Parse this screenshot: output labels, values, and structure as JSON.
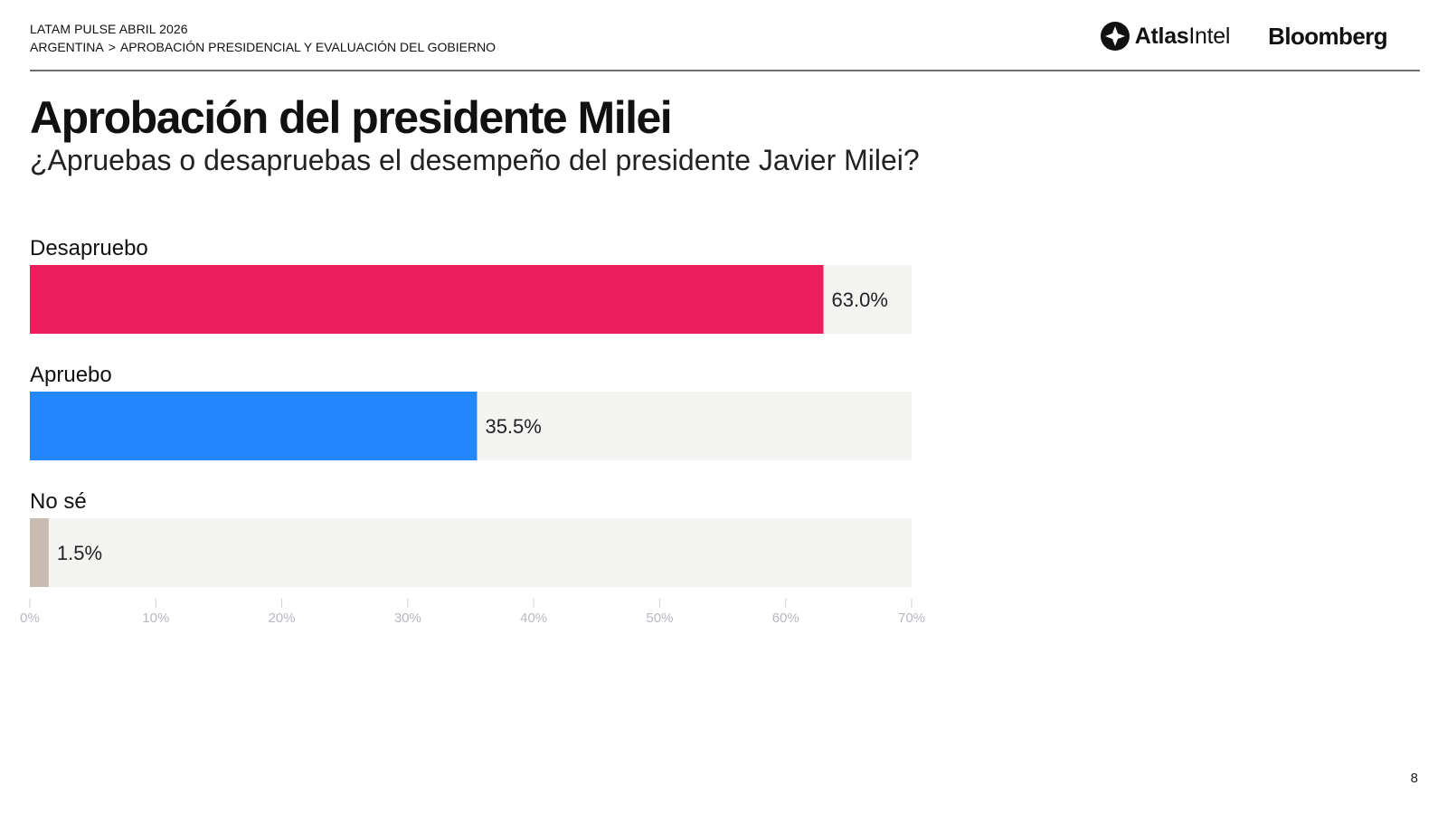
{
  "header": {
    "eyebrow": "LATAM PULSE ABRIL 2026",
    "breadcrumb": {
      "section": "ARGENTINA",
      "separator": ">",
      "topic": "APROBACIÓN PRESIDENCIAL Y EVALUACIÓN DEL GOBIERNO"
    }
  },
  "brands": {
    "atlas_bold": "Atlas",
    "atlas_light": "Intel",
    "bloomberg": "Bloomberg"
  },
  "page_title": "Aprobación del presidente Milei",
  "page_subtitle": "¿Apruebas o desapruebas el desempeño del presidente Javier Milei?",
  "page_number": "8",
  "chart_data": {
    "type": "bar",
    "orientation": "horizontal",
    "title": "Aprobación del presidente Milei",
    "subtitle": "¿Apruebas o desapruebas el desempeño del presidente Javier Milei?",
    "categories": [
      "Desapruebo",
      "Apruebo",
      "No sé"
    ],
    "values": [
      63.0,
      35.5,
      1.5
    ],
    "value_labels": [
      "63.0%",
      "35.5%",
      "1.5%"
    ],
    "colors": [
      "#EC1E5C",
      "#2388FF",
      "#C8BCB2"
    ],
    "track_color": "#F4F4F2",
    "xlim": [
      0,
      70
    ],
    "xticks": [
      0,
      10,
      20,
      30,
      40,
      50,
      60,
      70
    ],
    "xtick_labels": [
      "0%",
      "10%",
      "20%",
      "30%",
      "40%",
      "50%",
      "60%",
      "70%"
    ],
    "xlabel": "",
    "ylabel": "",
    "grid": false,
    "legend": "none"
  }
}
